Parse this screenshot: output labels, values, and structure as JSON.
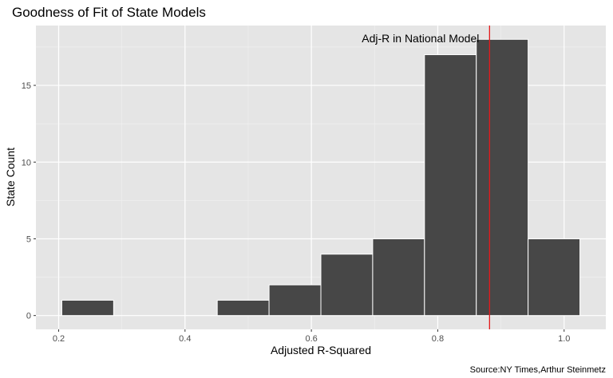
{
  "chart_data": {
    "type": "bar",
    "title": "Goodness of Fit of State Models",
    "xlabel": "Adjusted R-Squared",
    "ylabel": "State Count",
    "caption": "Source:NY Times,Arthur Steinmetz",
    "bins": [
      {
        "x0": 0.205,
        "x1": 0.287,
        "count": 1
      },
      {
        "x0": 0.287,
        "x1": 0.369,
        "count": 0
      },
      {
        "x0": 0.369,
        "x1": 0.451,
        "count": 0
      },
      {
        "x0": 0.451,
        "x1": 0.533,
        "count": 1
      },
      {
        "x0": 0.533,
        "x1": 0.615,
        "count": 2
      },
      {
        "x0": 0.615,
        "x1": 0.697,
        "count": 4
      },
      {
        "x0": 0.697,
        "x1": 0.779,
        "count": 5
      },
      {
        "x0": 0.779,
        "x1": 0.861,
        "count": 17
      },
      {
        "x0": 0.861,
        "x1": 0.943,
        "count": 18
      },
      {
        "x0": 0.943,
        "x1": 1.025,
        "count": 5
      }
    ],
    "xlim": [
      0.164,
      1.066
    ],
    "ylim": [
      -0.9,
      18.9
    ],
    "x_ticks": [
      0.2,
      0.4,
      0.6,
      0.8,
      1.0
    ],
    "x_tick_labels": [
      "0.2",
      "0.4",
      "0.6",
      "0.8",
      "1.0"
    ],
    "y_ticks": [
      0,
      5,
      10,
      15
    ],
    "y_tick_labels": [
      "0",
      "5",
      "10",
      "15"
    ],
    "reference_line": {
      "x": 0.882,
      "label": "Adj-R in National Model",
      "color": "#e41a1c"
    },
    "bar_color": "#474747",
    "panel_color": "#e5e5e5",
    "grid": true
  }
}
